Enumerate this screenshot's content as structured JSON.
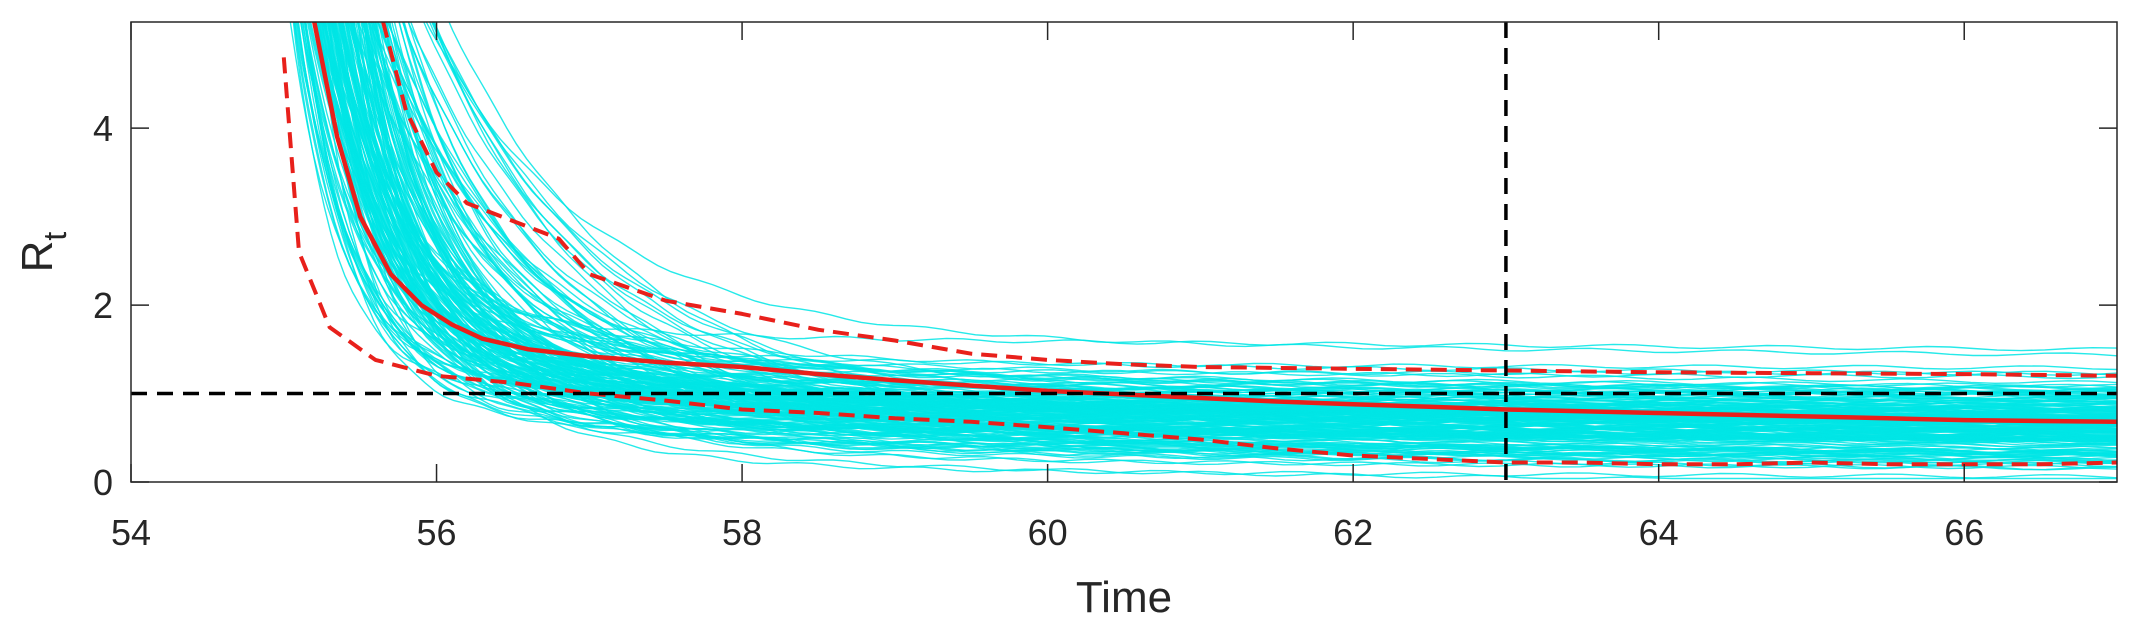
{
  "chart_data": {
    "type": "line",
    "xlabel": "Time",
    "ylabel": "R",
    "ylabel_subscript": "t",
    "xlim": [
      54,
      67
    ],
    "ylim": [
      0,
      5.2
    ],
    "xticks": [
      54,
      56,
      58,
      60,
      62,
      64,
      66
    ],
    "yticks": [
      0,
      2,
      4
    ],
    "grid": false,
    "reference_lines": [
      {
        "orientation": "horizontal",
        "value": 1,
        "style": "dashed",
        "color": "#000000"
      },
      {
        "orientation": "vertical",
        "value": 63,
        "style": "dashed",
        "color": "#000000"
      }
    ],
    "ensemble": {
      "color": "#00e5e5",
      "description_count": 200
    },
    "series": [
      {
        "role": "median",
        "color": "#e8201b",
        "style": "solid",
        "x": [
          55.2,
          55.35,
          55.5,
          55.7,
          55.9,
          56.1,
          56.3,
          56.6,
          57.0,
          57.5,
          58.0,
          58.5,
          59.0,
          59.5,
          60.0,
          60.5,
          61.0,
          61.5,
          62.0,
          62.5,
          63.0,
          63.5,
          64.0,
          64.5,
          65.0,
          65.5,
          66.0,
          66.5,
          67.0
        ],
        "y": [
          5.2,
          3.9,
          3.0,
          2.35,
          2.0,
          1.78,
          1.62,
          1.5,
          1.42,
          1.35,
          1.3,
          1.22,
          1.15,
          1.09,
          1.03,
          0.99,
          0.95,
          0.91,
          0.88,
          0.85,
          0.82,
          0.8,
          0.78,
          0.76,
          0.74,
          0.72,
          0.7,
          0.69,
          0.68
        ]
      },
      {
        "role": "upper-bound",
        "color": "#e8201b",
        "style": "dashed",
        "x": [
          55.65,
          55.8,
          56.0,
          56.2,
          56.5,
          56.8,
          57.0,
          57.5,
          58.0,
          58.5,
          59.0,
          59.5,
          60.0,
          60.5,
          61.0,
          62.0,
          63.0,
          64.0,
          65.0,
          66.0,
          67.0
        ],
        "y": [
          5.2,
          4.2,
          3.5,
          3.15,
          2.95,
          2.75,
          2.35,
          2.05,
          1.9,
          1.72,
          1.6,
          1.45,
          1.38,
          1.33,
          1.3,
          1.28,
          1.26,
          1.24,
          1.23,
          1.22,
          1.2
        ]
      },
      {
        "role": "lower-bound",
        "color": "#e8201b",
        "style": "dashed",
        "x": [
          55.0,
          55.1,
          55.3,
          55.6,
          56.0,
          56.5,
          57.0,
          57.5,
          58.0,
          58.5,
          59.0,
          59.5,
          60.0,
          60.5,
          61.0,
          61.5,
          62.0,
          62.5,
          63.0,
          63.5,
          64.0,
          64.5,
          65.0,
          65.5,
          66.0,
          66.5,
          67.0
        ],
        "y": [
          4.8,
          2.6,
          1.75,
          1.38,
          1.2,
          1.12,
          1.0,
          0.92,
          0.82,
          0.78,
          0.72,
          0.68,
          0.62,
          0.55,
          0.48,
          0.38,
          0.3,
          0.26,
          0.22,
          0.22,
          0.2,
          0.2,
          0.22,
          0.2,
          0.2,
          0.2,
          0.22
        ]
      }
    ]
  }
}
